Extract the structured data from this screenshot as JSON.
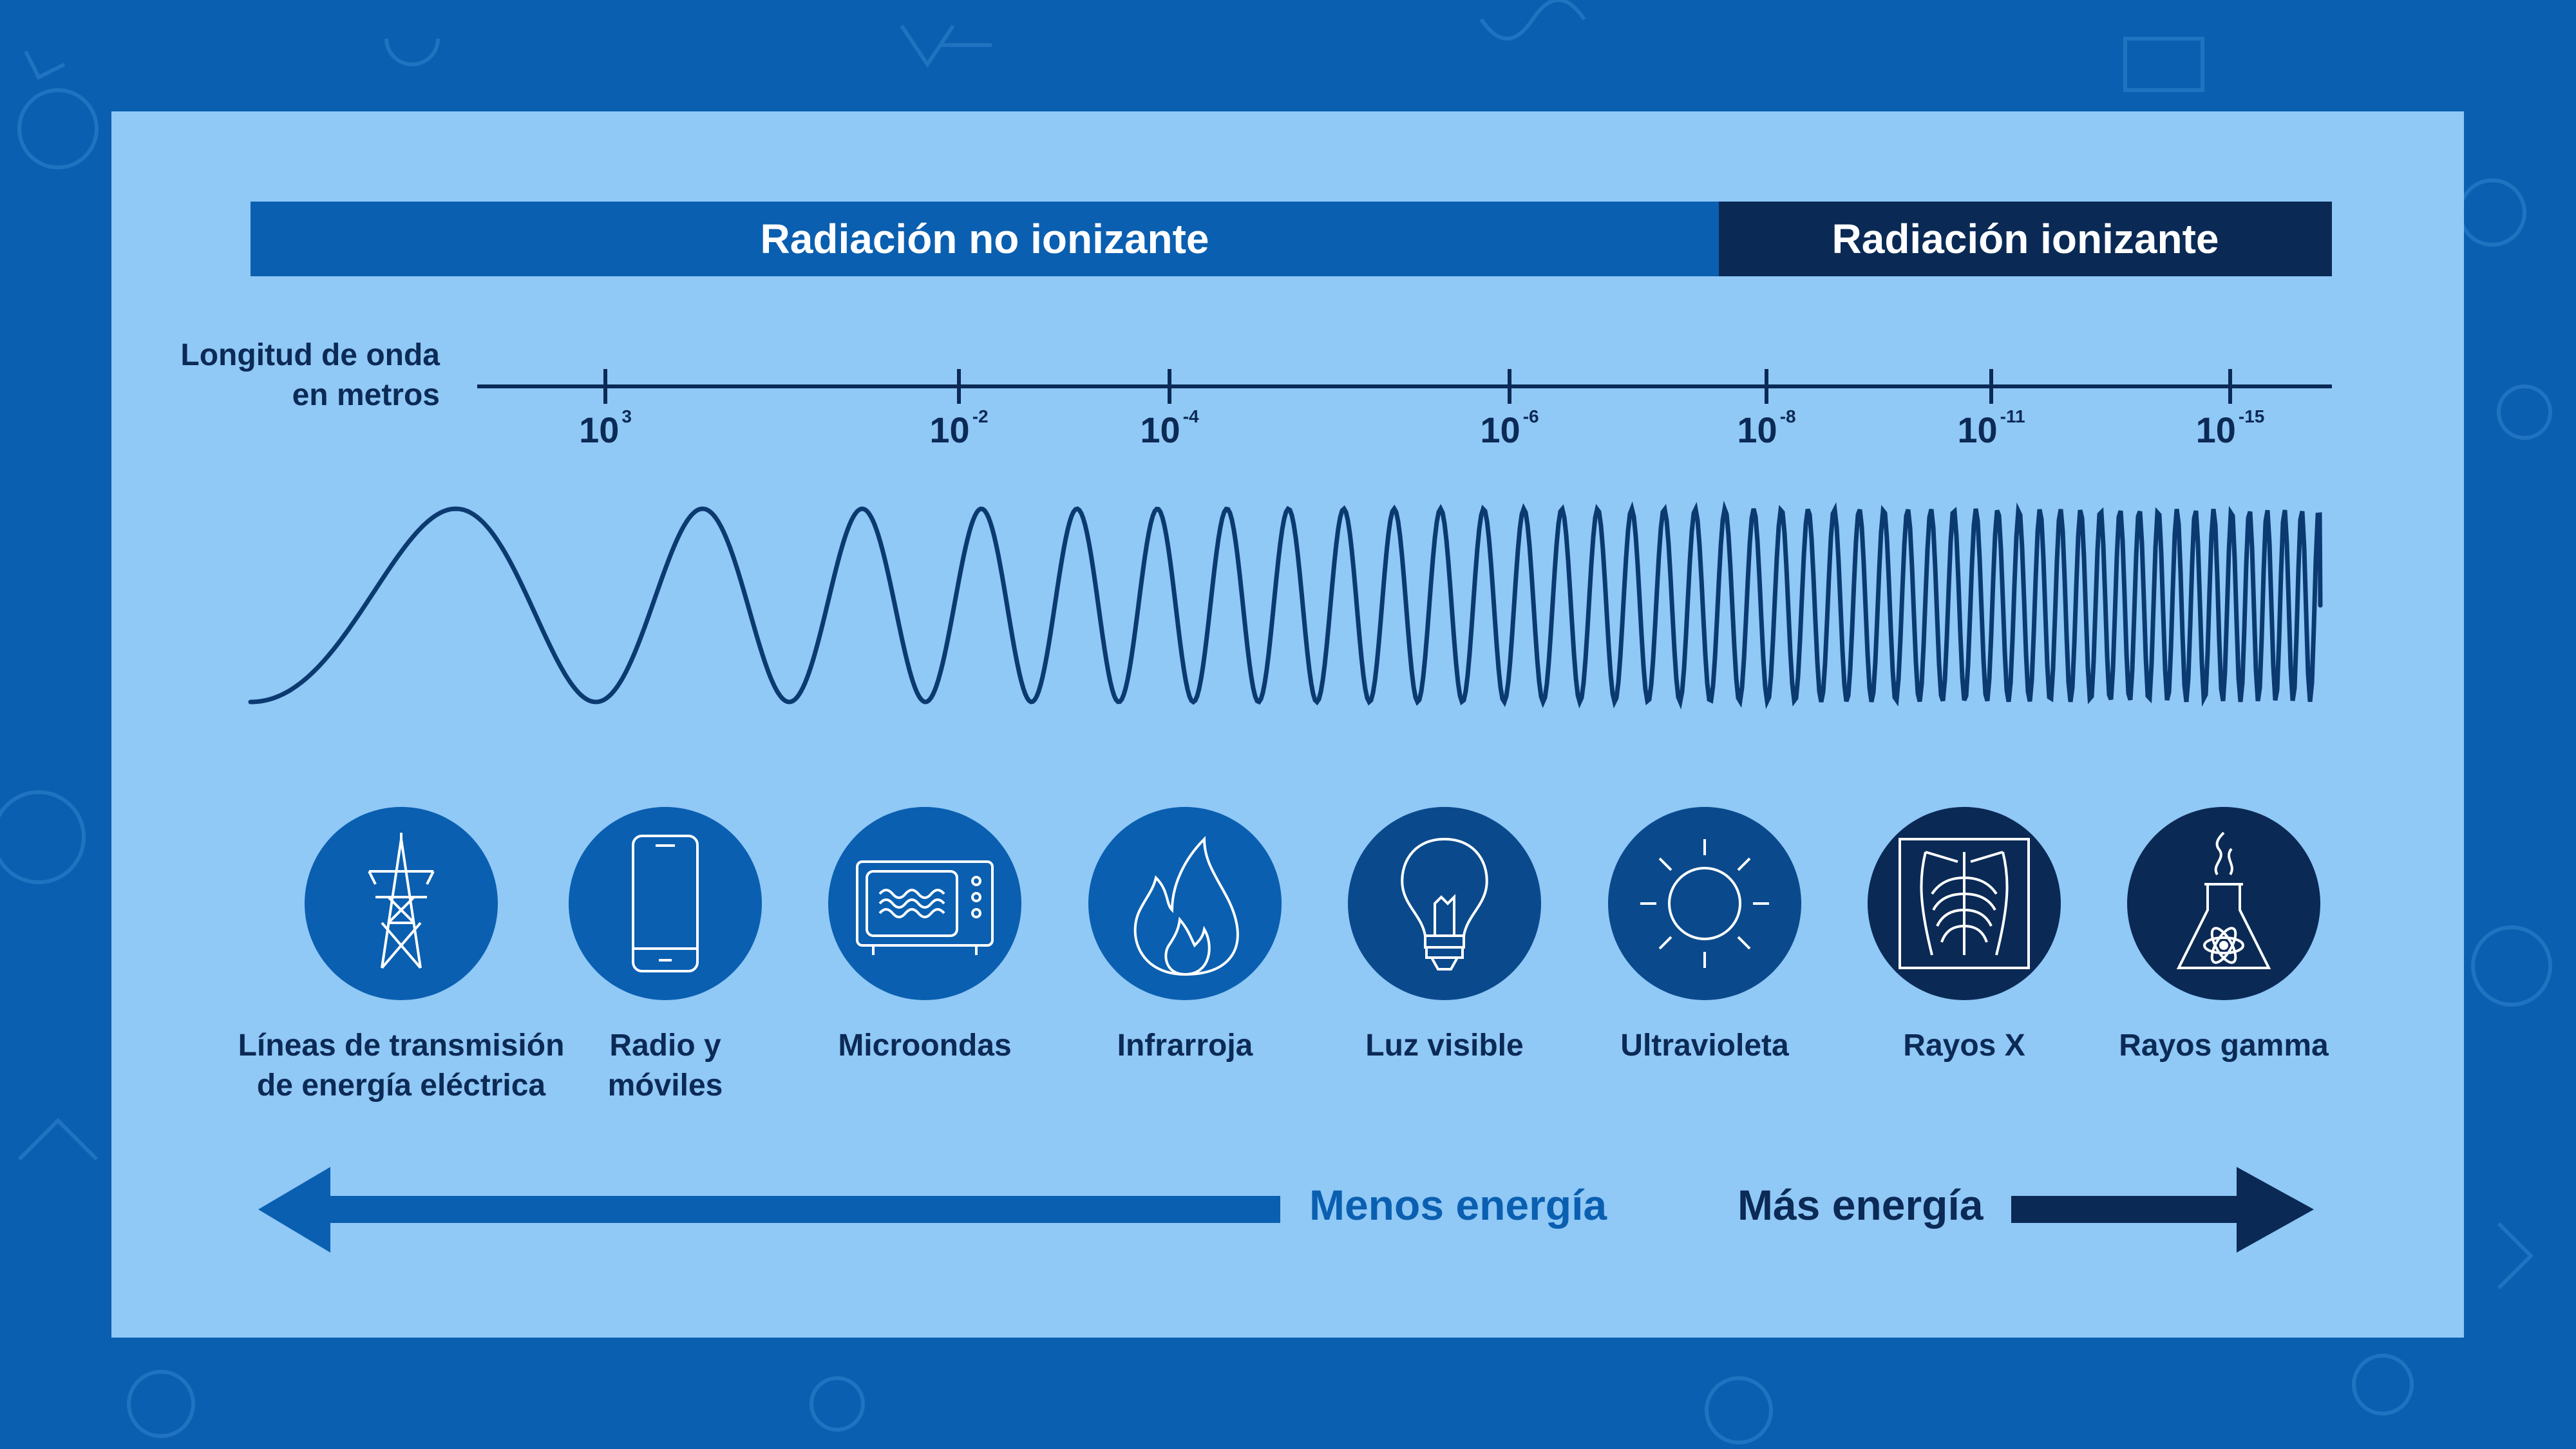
{
  "bands": {
    "non_ionizing": "Radiación no ionizante",
    "ionizing": "Radiación ionizante"
  },
  "wavelength_label": "Longitud de onda\nen metros",
  "ticks": [
    {
      "base": "10",
      "exp": "3"
    },
    {
      "base": "10",
      "exp": "-2"
    },
    {
      "base": "10",
      "exp": "-4"
    },
    {
      "base": "10",
      "exp": "-6"
    },
    {
      "base": "10",
      "exp": "-8"
    },
    {
      "base": "10",
      "exp": "-11"
    },
    {
      "base": "10",
      "exp": "-15"
    }
  ],
  "sources": [
    {
      "label": "Líneas de transmisión\nde energía eléctrica",
      "icon": "power-tower-icon",
      "color": "#0a5fb0"
    },
    {
      "label": "Radio y\nmóviles",
      "icon": "mobile-phone-icon",
      "color": "#0a5fb0"
    },
    {
      "label": "Microondas",
      "icon": "microwave-icon",
      "color": "#0a5fb0"
    },
    {
      "label": "Infrarroja",
      "icon": "flame-icon",
      "color": "#0a5fb0"
    },
    {
      "label": "Luz visible",
      "icon": "light-bulb-icon",
      "color": "#0a4a8c"
    },
    {
      "label": "Ultravioleta",
      "icon": "sun-icon",
      "color": "#0a4a8c"
    },
    {
      "label": "Rayos X",
      "icon": "xray-chest-icon",
      "color": "#0a2a55"
    },
    {
      "label": "Rayos gamma",
      "icon": "nuclear-flask-icon",
      "color": "#0a2a55"
    }
  ],
  "energy": {
    "less": "Menos energía",
    "more": "Más energía"
  },
  "colors": {
    "background": "#0a5fb0",
    "panel": "#90c8f6",
    "dark": "#0a2a55",
    "text": "#0b2a55"
  }
}
